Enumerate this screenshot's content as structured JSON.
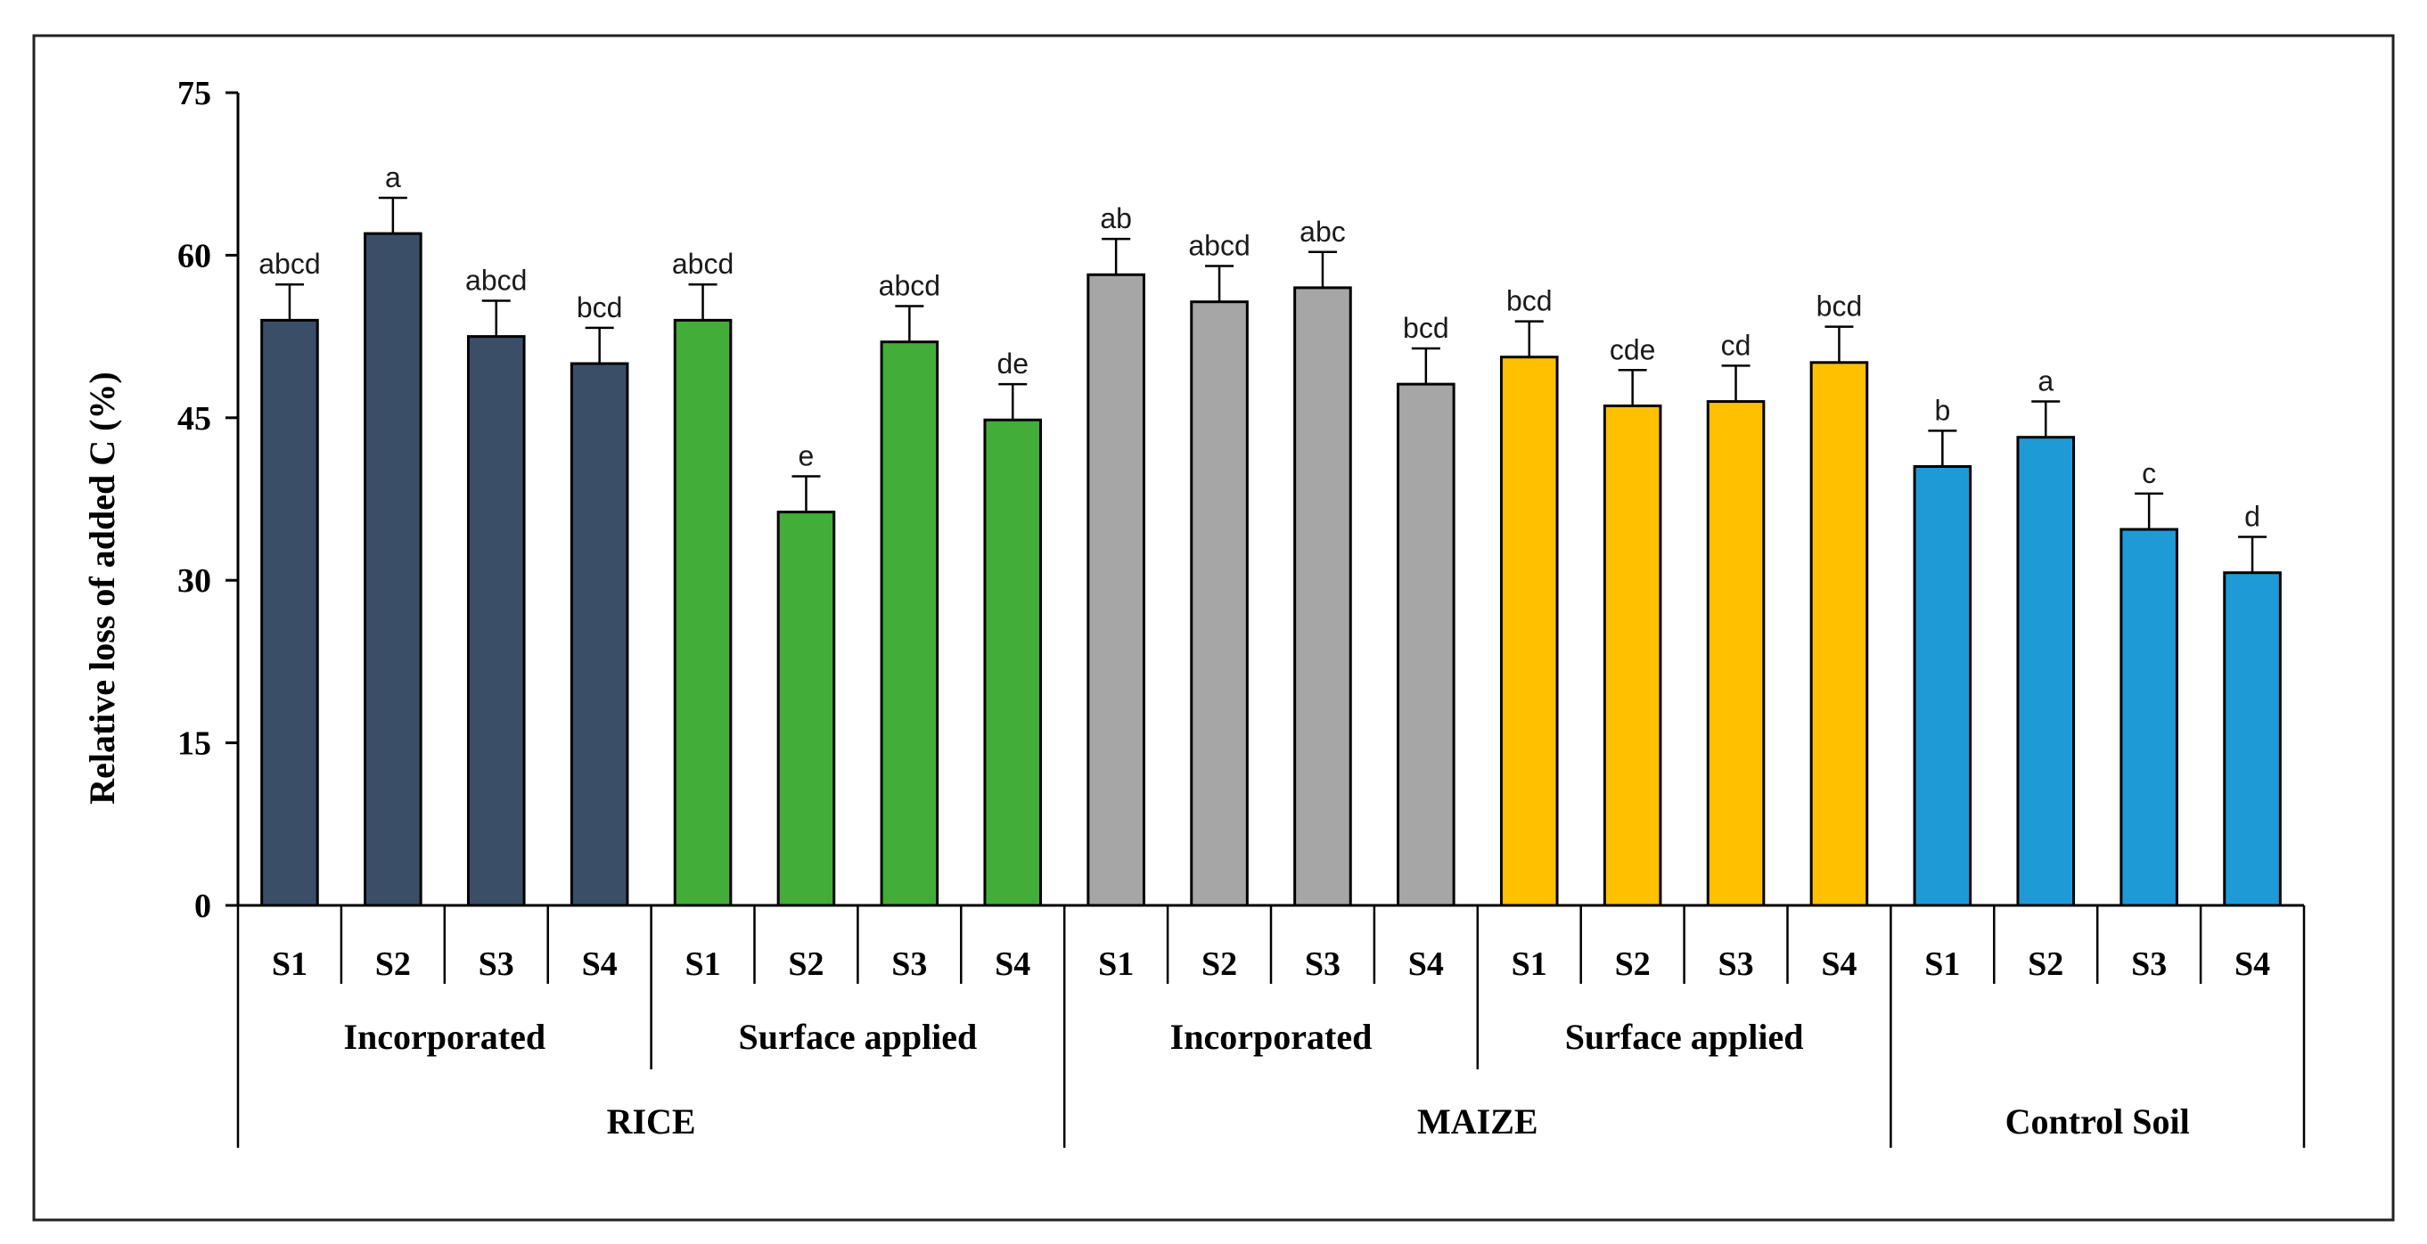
{
  "chart_data": {
    "type": "bar",
    "title": "",
    "xlabel": "",
    "ylabel": "Relative loss of added C (%)",
    "ylim": [
      0,
      75
    ],
    "yticks": [
      "0",
      "15",
      "30",
      "45",
      "60",
      "75"
    ],
    "grid": false,
    "legend": "none",
    "bars": [
      {
        "category": "S1",
        "value": 54.0,
        "error": 3.3,
        "sig": "abcd",
        "color": "#3a4e68"
      },
      {
        "category": "S2",
        "value": 62.0,
        "error": 3.3,
        "sig": "a",
        "color": "#3a4e68"
      },
      {
        "category": "S3",
        "value": 52.5,
        "error": 3.3,
        "sig": "abcd",
        "color": "#3a4e68"
      },
      {
        "category": "S4",
        "value": 50.0,
        "error": 3.3,
        "sig": "bcd",
        "color": "#3a4e68"
      },
      {
        "category": "S1",
        "value": 54.0,
        "error": 3.3,
        "sig": "abcd",
        "color": "#43ad3a"
      },
      {
        "category": "S2",
        "value": 36.3,
        "error": 3.3,
        "sig": "e",
        "color": "#43ad3a"
      },
      {
        "category": "S3",
        "value": 52.0,
        "error": 3.3,
        "sig": "abcd",
        "color": "#43ad3a"
      },
      {
        "category": "S4",
        "value": 44.8,
        "error": 3.3,
        "sig": "de",
        "color": "#43ad3a"
      },
      {
        "category": "S1",
        "value": 58.2,
        "error": 3.3,
        "sig": "ab",
        "color": "#a6a6a6"
      },
      {
        "category": "S2",
        "value": 55.7,
        "error": 3.3,
        "sig": "abcd",
        "color": "#a6a6a6"
      },
      {
        "category": "S3",
        "value": 57.0,
        "error": 3.3,
        "sig": "abc",
        "color": "#a6a6a6"
      },
      {
        "category": "S4",
        "value": 48.1,
        "error": 3.3,
        "sig": "bcd",
        "color": "#a6a6a6"
      },
      {
        "category": "S1",
        "value": 50.6,
        "error": 3.3,
        "sig": "bcd",
        "color": "#ffc000"
      },
      {
        "category": "S2",
        "value": 46.1,
        "error": 3.3,
        "sig": "cde",
        "color": "#ffc000"
      },
      {
        "category": "S3",
        "value": 46.5,
        "error": 3.3,
        "sig": "cd",
        "color": "#ffc000"
      },
      {
        "category": "S4",
        "value": 50.1,
        "error": 3.3,
        "sig": "bcd",
        "color": "#ffc000"
      },
      {
        "category": "S1",
        "value": 40.5,
        "error": 3.3,
        "sig": "b",
        "color": "#1e9bd7"
      },
      {
        "category": "S2",
        "value": 43.2,
        "error": 3.3,
        "sig": "a",
        "color": "#1e9bd7"
      },
      {
        "category": "S3",
        "value": 34.7,
        "error": 3.3,
        "sig": "c",
        "color": "#1e9bd7"
      },
      {
        "category": "S4",
        "value": 30.7,
        "error": 3.3,
        "sig": "d",
        "color": "#1e9bd7"
      }
    ],
    "subgroups": [
      {
        "label": "Incorporated",
        "start": 0,
        "end": 3
      },
      {
        "label": "Surface applied",
        "start": 4,
        "end": 7
      },
      {
        "label": "Incorporated",
        "start": 8,
        "end": 11
      },
      {
        "label": "Surface applied",
        "start": 12,
        "end": 15
      }
    ],
    "groups": [
      {
        "label": "RICE",
        "start": 0,
        "end": 7
      },
      {
        "label": "MAIZE",
        "start": 8,
        "end": 15
      },
      {
        "label": "Control Soil",
        "start": 16,
        "end": 19
      }
    ]
  }
}
